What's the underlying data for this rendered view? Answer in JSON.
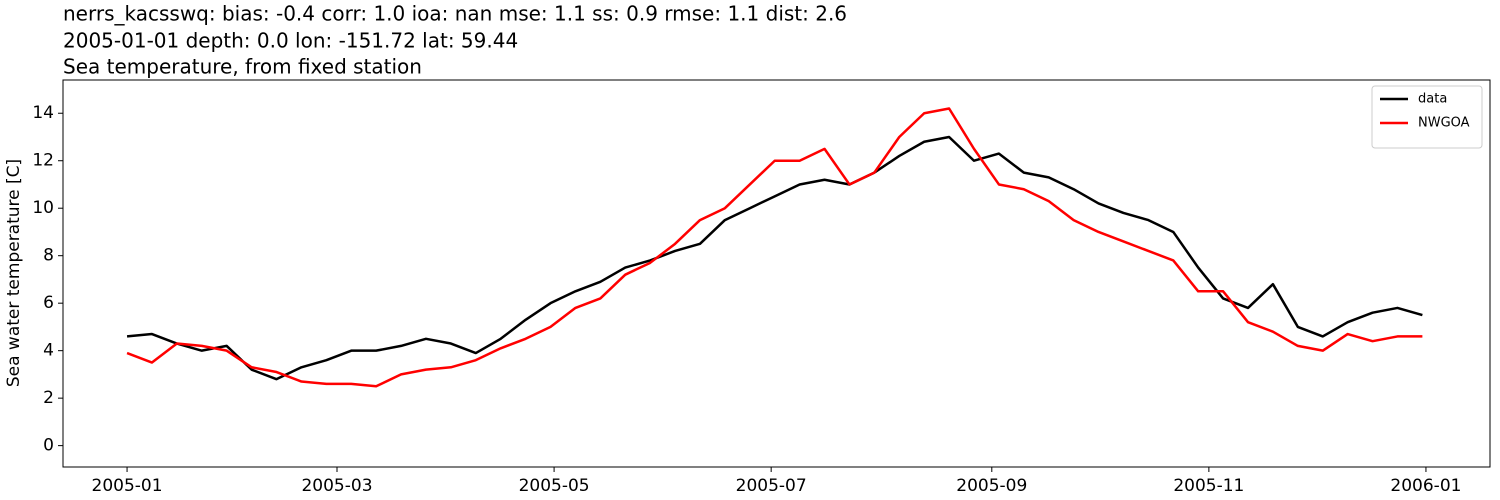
{
  "chart_data": {
    "type": "line",
    "title": "nerrs_kacsswq: bias: -0.4  corr: 1.0  ioa: nan  mse: 1.1  ss: 0.9  rmse: 1.1  dist: 2.6",
    "subtitle": "2005-01-01 depth: 0.0 lon: -151.72 lat: 59.44",
    "subtitle2": "Sea temperature, from fixed station",
    "y_label": "Sea water temperature [C]",
    "x": [
      0,
      7,
      14,
      21,
      28,
      35,
      42,
      49,
      56,
      63,
      70,
      77,
      84,
      91,
      98,
      105,
      112,
      119,
      126,
      133,
      140,
      147,
      154,
      161,
      168,
      175,
      182,
      189,
      196,
      203,
      210,
      217,
      224,
      231,
      238,
      245,
      252,
      259,
      266,
      273,
      280,
      287,
      294,
      301,
      308,
      315,
      322,
      329,
      336,
      343,
      350,
      357,
      364
    ],
    "series": [
      {
        "name": "data",
        "color": "#000000",
        "values": [
          4.6,
          4.7,
          4.3,
          4.0,
          4.2,
          3.2,
          2.8,
          3.3,
          3.6,
          4.0,
          4.0,
          4.2,
          4.5,
          4.3,
          3.9,
          4.5,
          5.3,
          6.0,
          6.5,
          6.9,
          7.5,
          7.8,
          8.2,
          8.5,
          9.5,
          10.0,
          10.5,
          11.0,
          11.2,
          11.0,
          11.5,
          12.2,
          12.8,
          13.0,
          12.0,
          12.3,
          11.5,
          11.3,
          10.8,
          10.2,
          9.8,
          9.5,
          9.0,
          7.5,
          6.2,
          5.8,
          6.8,
          5.0,
          4.6,
          5.2,
          5.6,
          5.8,
          5.5
        ]
      },
      {
        "name": "NWGOA",
        "color": "#ff0000",
        "values": [
          3.9,
          3.5,
          4.3,
          4.2,
          4.0,
          3.3,
          3.1,
          2.7,
          2.6,
          2.6,
          2.5,
          3.0,
          3.2,
          3.3,
          3.6,
          4.1,
          4.5,
          5.0,
          5.8,
          6.2,
          7.2,
          7.7,
          8.5,
          9.5,
          10.0,
          11.0,
          12.0,
          12.0,
          12.5,
          11.0,
          11.5,
          13.0,
          14.0,
          14.2,
          12.5,
          11.0,
          10.8,
          10.3,
          9.5,
          9.0,
          8.6,
          8.2,
          7.8,
          6.5,
          6.5,
          5.2,
          4.8,
          4.2,
          4.0,
          4.7,
          4.4,
          4.6,
          4.6
        ]
      }
    ],
    "xlim": [
      -18,
      383
    ],
    "xticks": [
      {
        "value": 0,
        "label": "2005-01"
      },
      {
        "value": 59,
        "label": "2005-03"
      },
      {
        "value": 120,
        "label": "2005-05"
      },
      {
        "value": 181,
        "label": "2005-07"
      },
      {
        "value": 243,
        "label": "2005-09"
      },
      {
        "value": 304,
        "label": "2005-11"
      },
      {
        "value": 365,
        "label": "2006-01"
      }
    ],
    "ylim": [
      -0.9,
      15.4
    ],
    "yticks": [
      0,
      2,
      4,
      6,
      8,
      10,
      12,
      14
    ],
    "grid": false,
    "legend": "upper right"
  }
}
